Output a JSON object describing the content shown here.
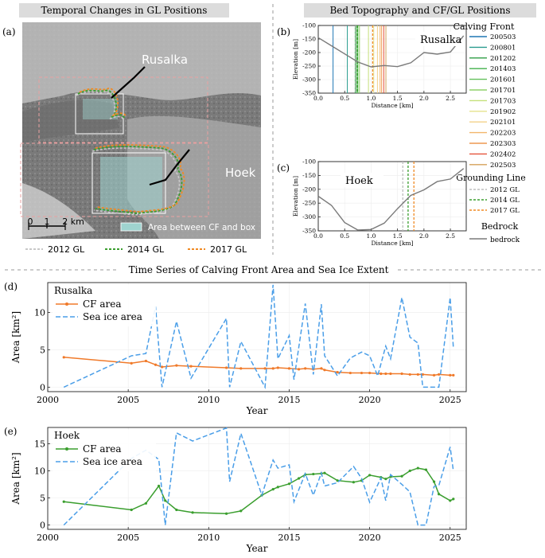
{
  "panel_a": {
    "section_title": "Temporal Changes in GL Positions",
    "panel_label": "(a)",
    "label_rusalka": "Rusalka",
    "label_hoek": "Hoek",
    "scale_labels": [
      "0",
      "1",
      "2 km"
    ],
    "box_legend": "Area between CF and box",
    "legend": [
      {
        "label": "2012 GL",
        "color": "#c8c8c8"
      },
      {
        "label": "2014 GL",
        "color": "#3a9e2e"
      },
      {
        "label": "2017 GL",
        "color": "#f08a24"
      }
    ]
  },
  "right_header": {
    "section_title": "Bed Topography and CF/GL Positions"
  },
  "bottom_header": {
    "section_title": "Time Series of Calving Front Area and Sea Ice Extent"
  },
  "chart_data": [
    {
      "id": "b",
      "panel_label": "(b)",
      "type": "line",
      "annotation": "Rusalka",
      "xlabel": "Distance [km]",
      "ylabel": "Elevation [m]",
      "xlim": [
        0,
        2.8
      ],
      "ylim": [
        -350,
        -100
      ],
      "xticks": [
        "0.0",
        "0.5",
        "1.0",
        "1.5",
        "2.0",
        "2.5"
      ],
      "yticks": [
        "-100",
        "-150",
        "-200",
        "-250",
        "-300",
        "-350"
      ],
      "bedrock": {
        "name": "bedrock",
        "x": [
          0,
          0.25,
          0.5,
          0.75,
          1.0,
          1.25,
          1.5,
          1.75,
          2.0,
          2.25,
          2.5,
          2.75
        ],
        "y": [
          -145,
          -175,
          -205,
          -235,
          -253,
          -248,
          -252,
          -238,
          -200,
          -206,
          -198,
          -138
        ]
      },
      "calving_fronts": [
        {
          "name": "200503",
          "x": 0.28,
          "color": "#1f77b4"
        },
        {
          "name": "200801",
          "x": 0.55,
          "color": "#2a9d8f"
        },
        {
          "name": "201202",
          "x": 0.7,
          "color": "#2f9e44"
        },
        {
          "name": "201403",
          "x": 0.73,
          "color": "#40b04a"
        },
        {
          "name": "201601",
          "x": 0.75,
          "color": "#62c05a"
        },
        {
          "name": "201701",
          "x": 0.78,
          "color": "#8fd16a"
        },
        {
          "name": "201703",
          "x": 0.95,
          "color": "#c4e07a"
        },
        {
          "name": "201902",
          "x": 1.05,
          "color": "#e6e38c"
        },
        {
          "name": "202101",
          "x": 1.12,
          "color": "#f3d28a"
        },
        {
          "name": "202203",
          "x": 1.17,
          "color": "#f2b66a"
        },
        {
          "name": "202303",
          "x": 1.2,
          "color": "#ee9850"
        },
        {
          "name": "202402",
          "x": 1.24,
          "color": "#e5533a"
        },
        {
          "name": "202503",
          "x": 1.28,
          "color": "#d4a15a"
        }
      ],
      "grounding_lines": [
        {
          "name": "2012 GL",
          "x": 0.71,
          "color": "#bdbdbd"
        },
        {
          "name": "2014 GL",
          "x": 0.74,
          "color": "#3a9e2e"
        },
        {
          "name": "2017 GL",
          "x": 1.03,
          "color": "#f08a24"
        }
      ]
    },
    {
      "id": "c",
      "panel_label": "(c)",
      "type": "line",
      "annotation": "Hoek",
      "xlabel": "Distance [km]",
      "ylabel": "Elevation [m]",
      "xlim": [
        0,
        2.8
      ],
      "ylim": [
        -350,
        -100
      ],
      "xticks": [
        "0.0",
        "0.5",
        "1.0",
        "1.5",
        "2.0",
        "2.5"
      ],
      "yticks": [
        "-100",
        "-150",
        "-200",
        "-250",
        "-300",
        "-350"
      ],
      "bedrock": {
        "name": "bedrock",
        "x": [
          0,
          0.25,
          0.5,
          0.75,
          1.0,
          1.25,
          1.5,
          1.75,
          2.0,
          2.25,
          2.5,
          2.75
        ],
        "y": [
          -225,
          -258,
          -320,
          -347,
          -345,
          -322,
          -270,
          -222,
          -202,
          -172,
          -163,
          -125
        ]
      },
      "grounding_lines": [
        {
          "name": "2012 GL",
          "x": 1.6,
          "color": "#bdbdbd"
        },
        {
          "name": "2014 GL",
          "x": 1.7,
          "color": "#3a9e2e"
        },
        {
          "name": "2017 GL",
          "x": 1.81,
          "color": "#f08a24"
        }
      ]
    },
    {
      "id": "d",
      "panel_label": "(d)",
      "type": "line",
      "annotation": "Rusalka",
      "xlabel": "Year",
      "ylabel": "Area [km²]",
      "xlim": [
        2000,
        2026
      ],
      "ylim": [
        -0.6,
        14
      ],
      "xticks": [
        "2000",
        "2005",
        "2010",
        "2015",
        "2020",
        "2025"
      ],
      "yticks": [
        "0",
        "5",
        "10"
      ],
      "series": [
        {
          "name": "CF area",
          "color": "#f07a2a",
          "x": [
            2001,
            2005.2,
            2006.1,
            2006.7,
            2007.1,
            2008,
            2008.9,
            2011.1,
            2012,
            2013.5,
            2014,
            2014.3,
            2015,
            2015.6,
            2016,
            2016.5,
            2017.0,
            2017.2,
            2018,
            2018.8,
            2019.5,
            2020,
            2020.7,
            2021.0,
            2021.3,
            2022,
            2022.5,
            2023,
            2023.3,
            2024,
            2024.3,
            2025.0,
            2025.2
          ],
          "y": [
            4.0,
            3.2,
            3.5,
            3.0,
            2.7,
            2.9,
            2.8,
            2.6,
            2.5,
            2.5,
            2.5,
            2.6,
            2.5,
            2.4,
            2.5,
            2.4,
            2.5,
            2.3,
            2.0,
            1.9,
            1.9,
            1.9,
            1.8,
            1.8,
            1.8,
            1.8,
            1.7,
            1.7,
            1.7,
            1.6,
            1.7,
            1.6,
            1.6
          ]
        },
        {
          "name": "Sea ice area",
          "color": "#4a9ee8",
          "dashed": true,
          "x": [
            2001,
            2005.2,
            2006.1,
            2006.7,
            2007.1,
            2008,
            2008.9,
            2011.1,
            2011.3,
            2012,
            2013.5,
            2014,
            2014.3,
            2015,
            2015.3,
            2016,
            2016.5,
            2017.0,
            2017.2,
            2018,
            2018.8,
            2019.5,
            2020,
            2020.5,
            2021.0,
            2021.3,
            2022,
            2022.5,
            2023,
            2023.3,
            2024,
            2024.3,
            2025.0,
            2025.2
          ],
          "y": [
            0,
            4.2,
            4.5,
            10.8,
            0,
            8.8,
            1.2,
            9.2,
            0,
            6.1,
            0,
            13.7,
            3.8,
            6.9,
            1.0,
            11.2,
            1.7,
            11.1,
            4.2,
            1.5,
            3.9,
            4.7,
            4.2,
            1.5,
            5.5,
            3.8,
            12.0,
            6.7,
            5.9,
            0,
            0,
            0,
            12.0,
            5.3
          ]
        }
      ]
    },
    {
      "id": "e",
      "panel_label": "(e)",
      "type": "line",
      "annotation": "Hoek",
      "xlabel": "Year",
      "ylabel": "Area [km²]",
      "xlim": [
        2000,
        2026
      ],
      "ylim": [
        -0.8,
        18
      ],
      "xticks": [
        "2000",
        "2005",
        "2010",
        "2015",
        "2020",
        "2025"
      ],
      "yticks": [
        "0",
        "5",
        "10",
        "15"
      ],
      "series": [
        {
          "name": "CF area",
          "color": "#3a9e2e",
          "x": [
            2001,
            2005.2,
            2006.1,
            2006.9,
            2007.3,
            2008,
            2009,
            2011.1,
            2012,
            2013.3,
            2014,
            2014.3,
            2015,
            2015.6,
            2016,
            2016.5,
            2017.0,
            2017.2,
            2018,
            2019,
            2019.5,
            2020,
            2020.7,
            2021.0,
            2021.3,
            2022,
            2022.5,
            2023,
            2023.5,
            2024,
            2024.3,
            2025.0,
            2025.2
          ],
          "y": [
            4.3,
            2.8,
            4.0,
            7.2,
            4.5,
            2.8,
            2.3,
            2.1,
            2.6,
            5.5,
            6.6,
            7.0,
            7.6,
            8.6,
            9.3,
            9.4,
            9.5,
            9.6,
            8.2,
            7.9,
            8.2,
            9.2,
            8.8,
            8.5,
            8.9,
            9.0,
            10.0,
            10.5,
            10.2,
            8.0,
            5.7,
            4.5,
            4.8
          ]
        },
        {
          "name": "Sea ice area",
          "color": "#4a9ee8",
          "dashed": true,
          "x": [
            2001,
            2005.2,
            2006.1,
            2006.9,
            2007.3,
            2008,
            2009,
            2011.1,
            2011.3,
            2012,
            2013.3,
            2014,
            2014.3,
            2015,
            2015.3,
            2016,
            2016.5,
            2017.0,
            2017.2,
            2018,
            2019,
            2019.5,
            2020,
            2020.7,
            2021.0,
            2021.3,
            2022,
            2022.5,
            2023,
            2023.5,
            2024,
            2024.3,
            2025.0,
            2025.2
          ],
          "y": [
            0,
            12.3,
            13.8,
            12.1,
            0,
            17.0,
            15.5,
            17.9,
            8.0,
            16.9,
            5.5,
            12.0,
            10.5,
            11.1,
            4.3,
            9.5,
            5.5,
            9.6,
            7.2,
            7.8,
            10.8,
            8.6,
            4.2,
            8.7,
            4.5,
            9.3,
            7.5,
            6.1,
            0,
            0,
            7.1,
            7.3,
            14.4,
            10.0
          ]
        }
      ]
    }
  ],
  "legend_b": {
    "cf_title": "Calving Front",
    "gl_title": "Grounding Line",
    "bed_title": "Bedrock",
    "bed_label": "bedrock"
  }
}
